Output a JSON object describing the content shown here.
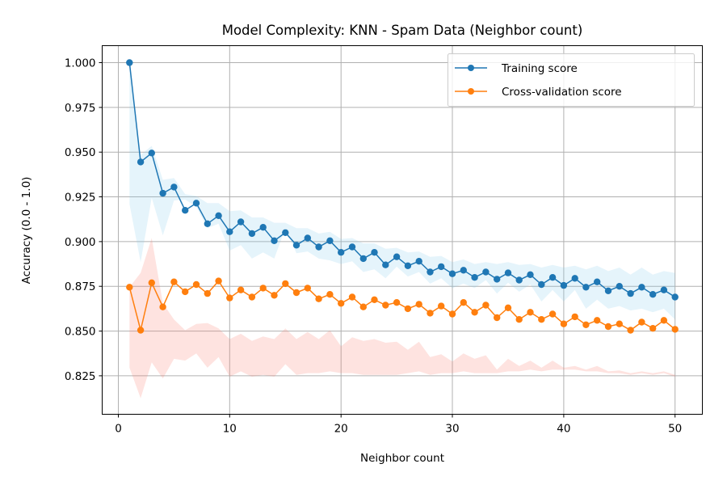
{
  "chart_data": {
    "type": "line",
    "title": "Model Complexity: KNN - Spam Data (Neighbor count)",
    "xlabel": "Neighbor count",
    "ylabel": "Accuracy (0.0 - 1.0)",
    "xlim": [
      -1.45,
      52.45
    ],
    "ylim": [
      0.8035,
      1.0095
    ],
    "xticks": [
      0,
      10,
      20,
      30,
      40,
      50
    ],
    "xtick_labels": [
      "0",
      "10",
      "20",
      "30",
      "40",
      "50"
    ],
    "yticks": [
      0.825,
      0.85,
      0.875,
      0.9,
      0.925,
      0.95,
      0.975,
      1.0
    ],
    "ytick_labels": [
      "0.825",
      "0.850",
      "0.875",
      "0.900",
      "0.925",
      "0.950",
      "0.975",
      "1.000"
    ],
    "grid": true,
    "legend_position": "top-right",
    "x": [
      1,
      2,
      3,
      4,
      5,
      6,
      7,
      8,
      9,
      10,
      11,
      12,
      13,
      14,
      15,
      16,
      17,
      18,
      19,
      20,
      21,
      22,
      23,
      24,
      25,
      26,
      27,
      28,
      29,
      30,
      31,
      32,
      33,
      34,
      35,
      36,
      37,
      38,
      39,
      40,
      41,
      42,
      43,
      44,
      45,
      46,
      47,
      48,
      49,
      50
    ],
    "series": [
      {
        "name": "Training score",
        "color": "#1f77b4",
        "band_color": "#87ceeb",
        "values": [
          1.0,
          0.9445,
          0.9495,
          0.927,
          0.9305,
          0.9175,
          0.9215,
          0.91,
          0.9145,
          0.9055,
          0.911,
          0.9045,
          0.908,
          0.9005,
          0.905,
          0.898,
          0.902,
          0.897,
          0.9005,
          0.894,
          0.897,
          0.8905,
          0.894,
          0.887,
          0.8915,
          0.8865,
          0.889,
          0.883,
          0.886,
          0.882,
          0.884,
          0.88,
          0.883,
          0.879,
          0.8825,
          0.8785,
          0.8815,
          0.876,
          0.88,
          0.8755,
          0.8795,
          0.8745,
          0.8775,
          0.8725,
          0.875,
          0.871,
          0.8745,
          0.8705,
          0.873,
          0.869
        ],
        "band_upper": [
          1.0,
          0.9485,
          0.9535,
          0.9345,
          0.9355,
          0.9265,
          0.9255,
          0.9215,
          0.9215,
          0.917,
          0.9175,
          0.9135,
          0.9135,
          0.9105,
          0.9105,
          0.9075,
          0.9075,
          0.9045,
          0.9055,
          0.9015,
          0.902,
          0.899,
          0.899,
          0.896,
          0.8965,
          0.894,
          0.8945,
          0.8915,
          0.892,
          0.8885,
          0.89,
          0.8875,
          0.8885,
          0.8875,
          0.8885,
          0.887,
          0.8875,
          0.8855,
          0.887,
          0.8855,
          0.8865,
          0.8845,
          0.8865,
          0.8835,
          0.8855,
          0.8815,
          0.8855,
          0.8815,
          0.8835,
          0.8825
        ],
        "band_lower": [
          0.921,
          0.8885,
          0.9245,
          0.9035,
          0.923,
          0.9235,
          0.9195,
          0.9075,
          0.91,
          0.895,
          0.898,
          0.8905,
          0.894,
          0.8905,
          0.9075,
          0.8935,
          0.8945,
          0.8905,
          0.8895,
          0.8875,
          0.889,
          0.883,
          0.8845,
          0.8795,
          0.886,
          0.8805,
          0.883,
          0.8765,
          0.8795,
          0.874,
          0.8765,
          0.874,
          0.8785,
          0.871,
          0.877,
          0.872,
          0.876,
          0.8665,
          0.873,
          0.8665,
          0.873,
          0.8625,
          0.8675,
          0.8625,
          0.864,
          0.8615,
          0.8625,
          0.8605,
          0.8625,
          0.8565
        ]
      },
      {
        "name": "Cross-validation score",
        "color": "#ff7f0e",
        "band_color": "#fa8072",
        "values": [
          0.8745,
          0.8505,
          0.877,
          0.8635,
          0.8775,
          0.872,
          0.876,
          0.871,
          0.878,
          0.8685,
          0.873,
          0.869,
          0.874,
          0.87,
          0.8765,
          0.8715,
          0.874,
          0.868,
          0.8705,
          0.8655,
          0.869,
          0.8635,
          0.8675,
          0.8645,
          0.866,
          0.8625,
          0.865,
          0.86,
          0.864,
          0.8595,
          0.866,
          0.8605,
          0.8645,
          0.8575,
          0.863,
          0.8565,
          0.8605,
          0.8565,
          0.8595,
          0.854,
          0.858,
          0.8535,
          0.856,
          0.8525,
          0.854,
          0.8505,
          0.855,
          0.8515,
          0.856,
          0.851
        ],
        "band_upper": [
          0.8745,
          0.8825,
          0.902,
          0.8655,
          0.8565,
          0.8505,
          0.854,
          0.8545,
          0.8515,
          0.8455,
          0.8485,
          0.8445,
          0.847,
          0.8455,
          0.8515,
          0.8455,
          0.8495,
          0.8455,
          0.8505,
          0.8415,
          0.8465,
          0.8445,
          0.8455,
          0.8435,
          0.844,
          0.8395,
          0.844,
          0.8355,
          0.837,
          0.833,
          0.8375,
          0.8345,
          0.8365,
          0.8285,
          0.8345,
          0.8305,
          0.8335,
          0.8295,
          0.8335,
          0.8295,
          0.8305,
          0.8285,
          0.8305,
          0.8275,
          0.828,
          0.8265,
          0.8275,
          0.8265,
          0.8275,
          0.8255
        ],
        "band_lower": [
          0.8295,
          0.8125,
          0.8325,
          0.8235,
          0.8345,
          0.8335,
          0.8375,
          0.8295,
          0.8355,
          0.8245,
          0.8275,
          0.8245,
          0.8255,
          0.8245,
          0.8315,
          0.8255,
          0.8265,
          0.8265,
          0.8275,
          0.8265,
          0.8265,
          0.8255,
          0.8255,
          0.8255,
          0.8255,
          0.8265,
          0.8275,
          0.8255,
          0.8265,
          0.8265,
          0.8275,
          0.8265,
          0.8265,
          0.8265,
          0.8275,
          0.8275,
          0.8285,
          0.8275,
          0.8285,
          0.8285,
          0.8285,
          0.8275,
          0.8275,
          0.8265,
          0.8265,
          0.8255,
          0.8265,
          0.8255,
          0.8265,
          0.8245
        ]
      }
    ]
  }
}
